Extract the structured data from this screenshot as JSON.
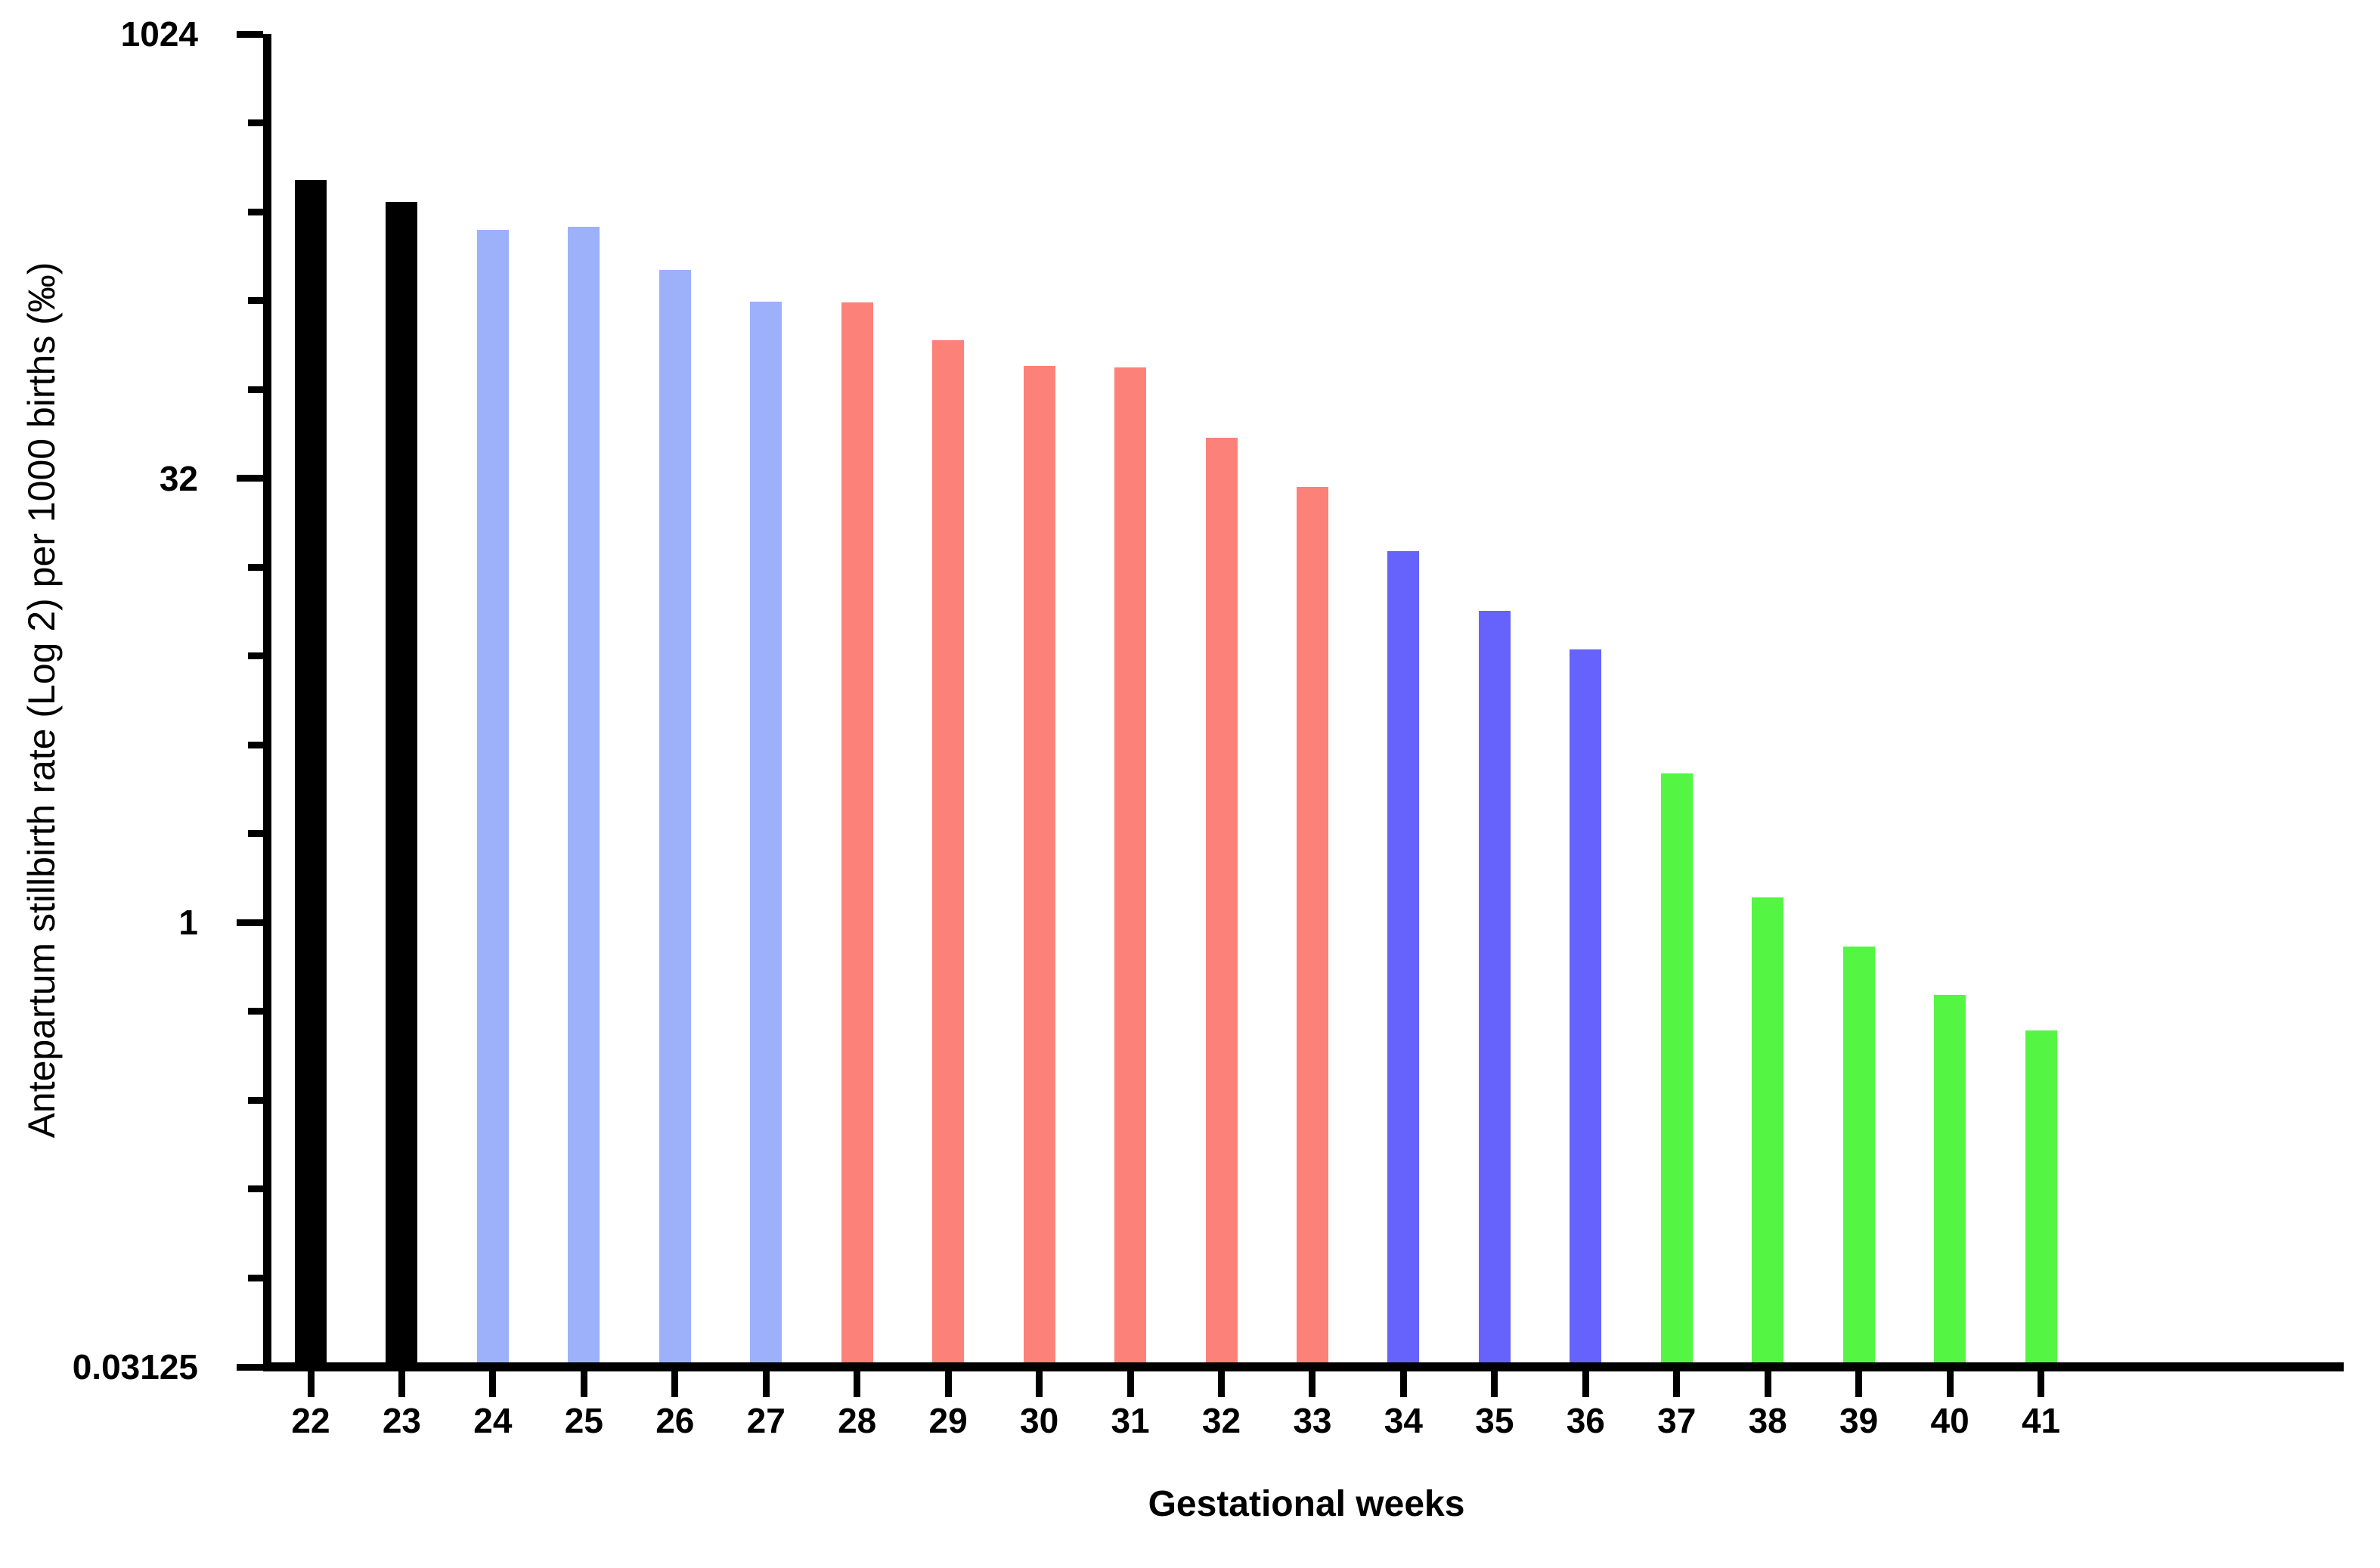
{
  "chart_data": {
    "type": "bar",
    "title": "",
    "xlabel": "Gestational weeks",
    "ylabel": "Antepartum stillbirth rate (Log 2) per 1000 births (‰)",
    "y_scale": "log2",
    "ylim": [
      0.03125,
      1024
    ],
    "grid": false,
    "legend": "none",
    "y_major_ticks": [
      {
        "label": "1024",
        "value": 1024
      },
      {
        "label": "32",
        "value": 32
      },
      {
        "label": "1",
        "value": 1
      },
      {
        "label": "0.03125",
        "value": 0.03125
      }
    ],
    "y_minor_tick_values": [
      512,
      256,
      128,
      64,
      16,
      8,
      4,
      2,
      0.5,
      0.25,
      0.125,
      0.0625
    ],
    "categories": [
      "22",
      "23",
      "24",
      "25",
      "26",
      "27",
      "28",
      "29",
      "30",
      "31",
      "32",
      "33",
      "34",
      "35",
      "36",
      "37",
      "38",
      "39",
      "40",
      "41"
    ],
    "values": [
      329,
      276,
      222,
      228,
      163,
      127,
      126,
      94,
      77,
      76,
      44,
      30,
      18.1,
      11.4,
      8.4,
      3.2,
      1.22,
      0.83,
      0.57,
      0.43
    ],
    "bar_colors": [
      "#000000",
      "#000000",
      "#9db1fb",
      "#9db1fb",
      "#9db1fb",
      "#9db1fb",
      "#fc8179",
      "#fc8179",
      "#fc8179",
      "#fc8179",
      "#fc8179",
      "#fc8179",
      "#6662fc",
      "#6662fc",
      "#6662fc",
      "#55f544",
      "#55f544",
      "#55f544",
      "#55f544",
      "#55f544"
    ],
    "color_groups": [
      {
        "weeks": "22–23",
        "color": "#000000"
      },
      {
        "weeks": "24–27",
        "color": "#9db1fb"
      },
      {
        "weeks": "28–33",
        "color": "#fc8179"
      },
      {
        "weeks": "34–36",
        "color": "#6662fc"
      },
      {
        "weeks": "37–41",
        "color": "#55f544"
      }
    ],
    "axis_color": "#000000"
  }
}
